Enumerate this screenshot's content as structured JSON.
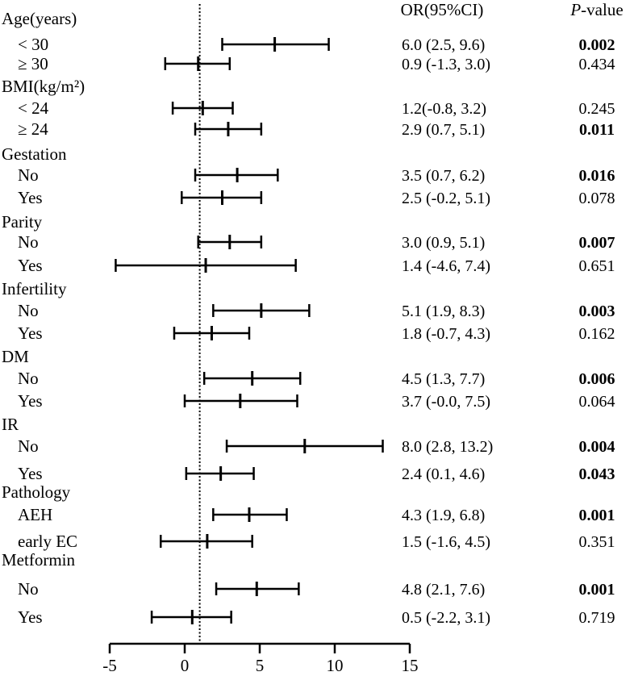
{
  "chart_data": {
    "type": "forest",
    "header": {
      "or_label": "OR(95%CI)",
      "p_prefix": "P",
      "p_suffix": "-value"
    },
    "xlim": [
      -5,
      15
    ],
    "xticks": [
      -5,
      0,
      5,
      10,
      15
    ],
    "reference_line": 1,
    "groups": [
      {
        "label": "Age(years)",
        "rows": [
          {
            "label": "< 30",
            "or": 6.0,
            "lo": 2.5,
            "hi": 9.6,
            "ci_text": "6.0 (2.5, 9.6)",
            "p": "0.002",
            "significant": true
          },
          {
            "label": "≥ 30",
            "or": 0.9,
            "lo": -1.3,
            "hi": 3.0,
            "ci_text": "0.9 (-1.3, 3.0)",
            "p": "0.434",
            "significant": false
          }
        ]
      },
      {
        "label": "BMI(kg/m²)",
        "rows": [
          {
            "label": "< 24",
            "or": 1.2,
            "lo": -0.8,
            "hi": 3.2,
            "ci_text": "1.2(-0.8, 3.2)",
            "p": "0.245",
            "significant": false
          },
          {
            "label": "≥ 24",
            "or": 2.9,
            "lo": 0.7,
            "hi": 5.1,
            "ci_text": "2.9 (0.7, 5.1)",
            "p": "0.011",
            "significant": true
          }
        ]
      },
      {
        "label": "Gestation",
        "rows": [
          {
            "label": "No",
            "or": 3.5,
            "lo": 0.7,
            "hi": 6.2,
            "ci_text": "3.5 (0.7, 6.2)",
            "p": "0.016",
            "significant": true
          },
          {
            "label": "Yes",
            "or": 2.5,
            "lo": -0.2,
            "hi": 5.1,
            "ci_text": "2.5 (-0.2, 5.1)",
            "p": "0.078",
            "significant": false
          }
        ]
      },
      {
        "label": "Parity",
        "rows": [
          {
            "label": "No",
            "or": 3.0,
            "lo": 0.9,
            "hi": 5.1,
            "ci_text": "3.0 (0.9, 5.1)",
            "p": "0.007",
            "significant": true
          },
          {
            "label": "Yes",
            "or": 1.4,
            "lo": -4.6,
            "hi": 7.4,
            "ci_text": "1.4 (-4.6, 7.4)",
            "p": "0.651",
            "significant": false
          }
        ]
      },
      {
        "label": "Infertility",
        "rows": [
          {
            "label": "No",
            "or": 5.1,
            "lo": 1.9,
            "hi": 8.3,
            "ci_text": "5.1 (1.9, 8.3)",
            "p": "0.003",
            "significant": true
          },
          {
            "label": "Yes",
            "or": 1.8,
            "lo": -0.7,
            "hi": 4.3,
            "ci_text": "1.8 (-0.7, 4.3)",
            "p": "0.162",
            "significant": false
          }
        ]
      },
      {
        "label": "DM",
        "rows": [
          {
            "label": "No",
            "or": 4.5,
            "lo": 1.3,
            "hi": 7.7,
            "ci_text": "4.5 (1.3, 7.7)",
            "p": "0.006",
            "significant": true
          },
          {
            "label": "Yes",
            "or": 3.7,
            "lo": -0.0,
            "hi": 7.5,
            "ci_text": "3.7 (-0.0, 7.5)",
            "p": "0.064",
            "significant": false
          }
        ]
      },
      {
        "label": "IR",
        "rows": [
          {
            "label": "No",
            "or": 8.0,
            "lo": 2.8,
            "hi": 13.2,
            "ci_text": "8.0 (2.8, 13.2)",
            "p": "0.004",
            "significant": true
          },
          {
            "label": "Yes",
            "or": 2.4,
            "lo": 0.1,
            "hi": 4.6,
            "ci_text": "2.4 (0.1, 4.6)",
            "p": "0.043",
            "significant": true
          }
        ]
      },
      {
        "label": "Pathology",
        "rows": [
          {
            "label": "AEH",
            "or": 4.3,
            "lo": 1.9,
            "hi": 6.8,
            "ci_text": "4.3 (1.9, 6.8)",
            "p": "0.001",
            "significant": true
          },
          {
            "label": "early EC",
            "or": 1.5,
            "lo": -1.6,
            "hi": 4.5,
            "ci_text": "1.5 (-1.6, 4.5)",
            "p": "0.351",
            "significant": false
          }
        ]
      },
      {
        "label": "Metformin",
        "rows": [
          {
            "label": "No",
            "or": 4.8,
            "lo": 2.1,
            "hi": 7.6,
            "ci_text": "4.8 (2.1, 7.6)",
            "p": "0.001",
            "significant": true
          },
          {
            "label": "Yes",
            "or": 0.5,
            "lo": -2.2,
            "hi": 3.1,
            "ci_text": "0.5 (-2.2, 3.1)",
            "p": "0.719",
            "significant": false
          }
        ]
      }
    ]
  }
}
